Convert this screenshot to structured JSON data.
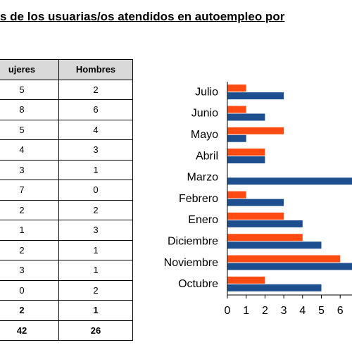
{
  "header": {
    "title": "s de los usuarias/os atendidos en autoempleo por"
  },
  "table": {
    "columns": [
      "ujeres",
      "Hombres"
    ],
    "rows": [
      [
        "5",
        "2"
      ],
      [
        "8",
        "6"
      ],
      [
        "5",
        "4"
      ],
      [
        "4",
        "3"
      ],
      [
        "3",
        "1"
      ],
      [
        "7",
        "0"
      ],
      [
        "2",
        "2"
      ],
      [
        "1",
        "3"
      ],
      [
        "2",
        "1"
      ],
      [
        "3",
        "1"
      ],
      [
        "0",
        "2"
      ],
      [
        "2",
        "1"
      ],
      [
        "42",
        "26"
      ]
    ]
  },
  "chart_data": {
    "type": "hbar",
    "categories": [
      "Julio",
      "Junio",
      "Mayo",
      "Abril",
      "Marzo",
      "Febrero",
      "Enero",
      "Diciembre",
      "Noviembre",
      "Octubre"
    ],
    "series": [
      {
        "color": "#ff4a12",
        "values": [
          1,
          1,
          3,
          2,
          0,
          1,
          3,
          4,
          6,
          2
        ]
      },
      {
        "color": "#1d4f8f",
        "values": [
          3,
          2,
          1,
          2,
          7,
          3,
          4,
          5,
          7,
          5
        ]
      }
    ],
    "xlim": [
      0,
      8
    ],
    "xticks": [
      0,
      1,
      2,
      3,
      4,
      5,
      6
    ]
  }
}
